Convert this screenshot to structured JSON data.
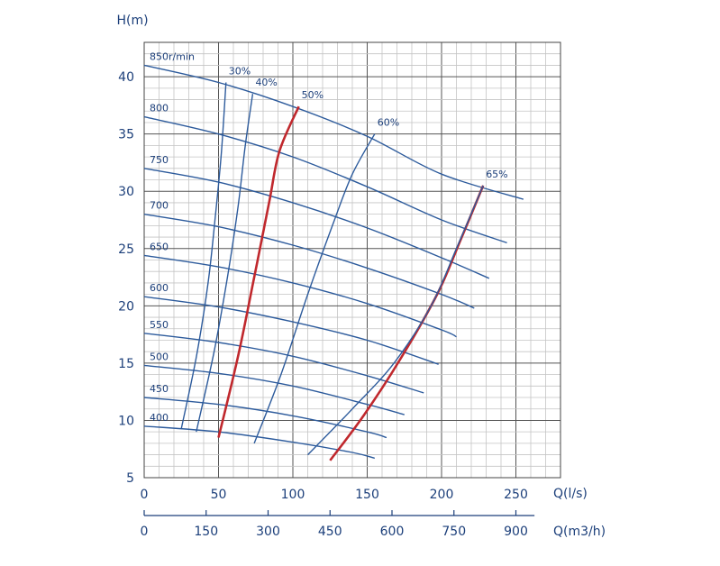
{
  "chart_data": {
    "type": "line",
    "y_axis": {
      "label": "H(m)",
      "range": [
        5,
        43
      ],
      "ticks": [
        5,
        10,
        15,
        20,
        25,
        30,
        35,
        40
      ]
    },
    "x_axis": {
      "label": "Q(l/s)",
      "range": [
        0,
        280
      ],
      "ticks": [
        0,
        50,
        100,
        150,
        200,
        250
      ]
    },
    "x2_axis": {
      "label": "Q(m3/h)",
      "ticks": [
        0,
        150,
        300,
        450,
        600,
        750,
        900
      ]
    },
    "grid": true,
    "speed_curves": [
      {
        "name": "850r/min",
        "points": [
          [
            0,
            41.0
          ],
          [
            50,
            39.5
          ],
          [
            100,
            37.4
          ],
          [
            150,
            34.8
          ],
          [
            200,
            31.5
          ],
          [
            255,
            29.3
          ]
        ]
      },
      {
        "name": "800",
        "points": [
          [
            0,
            36.5
          ],
          [
            50,
            35.0
          ],
          [
            100,
            33.0
          ],
          [
            150,
            30.4
          ],
          [
            200,
            27.5
          ],
          [
            244,
            25.5
          ]
        ]
      },
      {
        "name": "750",
        "points": [
          [
            0,
            32.0
          ],
          [
            50,
            30.8
          ],
          [
            100,
            29.0
          ],
          [
            150,
            26.8
          ],
          [
            200,
            24.2
          ],
          [
            232,
            22.4
          ]
        ]
      },
      {
        "name": "700",
        "points": [
          [
            0,
            28.0
          ],
          [
            50,
            26.9
          ],
          [
            100,
            25.3
          ],
          [
            150,
            23.3
          ],
          [
            200,
            21.0
          ],
          [
            222,
            19.8
          ]
        ]
      },
      {
        "name": "650",
        "points": [
          [
            0,
            24.4
          ],
          [
            50,
            23.4
          ],
          [
            100,
            22.0
          ],
          [
            150,
            20.2
          ],
          [
            200,
            17.9
          ],
          [
            210,
            17.3
          ]
        ]
      },
      {
        "name": "600",
        "points": [
          [
            0,
            20.8
          ],
          [
            50,
            19.9
          ],
          [
            100,
            18.6
          ],
          [
            150,
            17.0
          ],
          [
            198,
            14.9
          ]
        ]
      },
      {
        "name": "550",
        "points": [
          [
            0,
            17.6
          ],
          [
            50,
            16.8
          ],
          [
            100,
            15.6
          ],
          [
            150,
            13.9
          ],
          [
            188,
            12.4
          ]
        ]
      },
      {
        "name": "500",
        "points": [
          [
            0,
            14.8
          ],
          [
            50,
            14.1
          ],
          [
            100,
            13.0
          ],
          [
            150,
            11.4
          ],
          [
            175,
            10.5
          ]
        ]
      },
      {
        "name": "450",
        "points": [
          [
            0,
            12.0
          ],
          [
            50,
            11.4
          ],
          [
            100,
            10.4
          ],
          [
            150,
            9.0
          ],
          [
            163,
            8.5
          ]
        ]
      },
      {
        "name": "400",
        "points": [
          [
            0,
            9.5
          ],
          [
            50,
            9.0
          ],
          [
            100,
            8.1
          ],
          [
            140,
            7.2
          ],
          [
            155,
            6.7
          ]
        ]
      }
    ],
    "efficiency_curves": [
      {
        "name": "30%",
        "color": "#2d5b9c",
        "points": [
          [
            25,
            9.3
          ],
          [
            35,
            15.5
          ],
          [
            43,
            22.0
          ],
          [
            48,
            28.0
          ],
          [
            52,
            33.5
          ],
          [
            55,
            39.5
          ]
        ]
      },
      {
        "name": "40%",
        "color": "#2d5b9c",
        "points": [
          [
            35,
            9.0
          ],
          [
            47,
            16.0
          ],
          [
            56,
            22.5
          ],
          [
            63,
            28.5
          ],
          [
            68,
            34.0
          ],
          [
            73,
            38.5
          ]
        ]
      },
      {
        "name": "50%",
        "color": "#c0282d",
        "points": [
          [
            50,
            8.5
          ],
          [
            63,
            15.5
          ],
          [
            74,
            22.5
          ],
          [
            84,
            29.0
          ],
          [
            91,
            33.5
          ],
          [
            104,
            37.4
          ]
        ]
      },
      {
        "name": "60%",
        "color": "#2d5b9c",
        "points": [
          [
            74,
            8.0
          ],
          [
            92,
            14.0
          ],
          [
            110,
            21.0
          ],
          [
            128,
            27.5
          ],
          [
            140,
            31.5
          ],
          [
            155,
            35.0
          ]
        ]
      },
      {
        "name": "65%",
        "color": "#c0282d",
        "points": [
          [
            125,
            6.5
          ],
          [
            148,
            10.5
          ],
          [
            173,
            15.5
          ],
          [
            197,
            21.0
          ],
          [
            212,
            25.5
          ],
          [
            228,
            30.5
          ]
        ]
      },
      {
        "name": "",
        "color": "#2d5b9c",
        "points": [
          [
            110,
            7.0
          ],
          [
            140,
            11.0
          ],
          [
            168,
            15.0
          ],
          [
            193,
            20.0
          ],
          [
            210,
            25.0
          ],
          [
            228,
            30.5
          ]
        ]
      }
    ]
  }
}
